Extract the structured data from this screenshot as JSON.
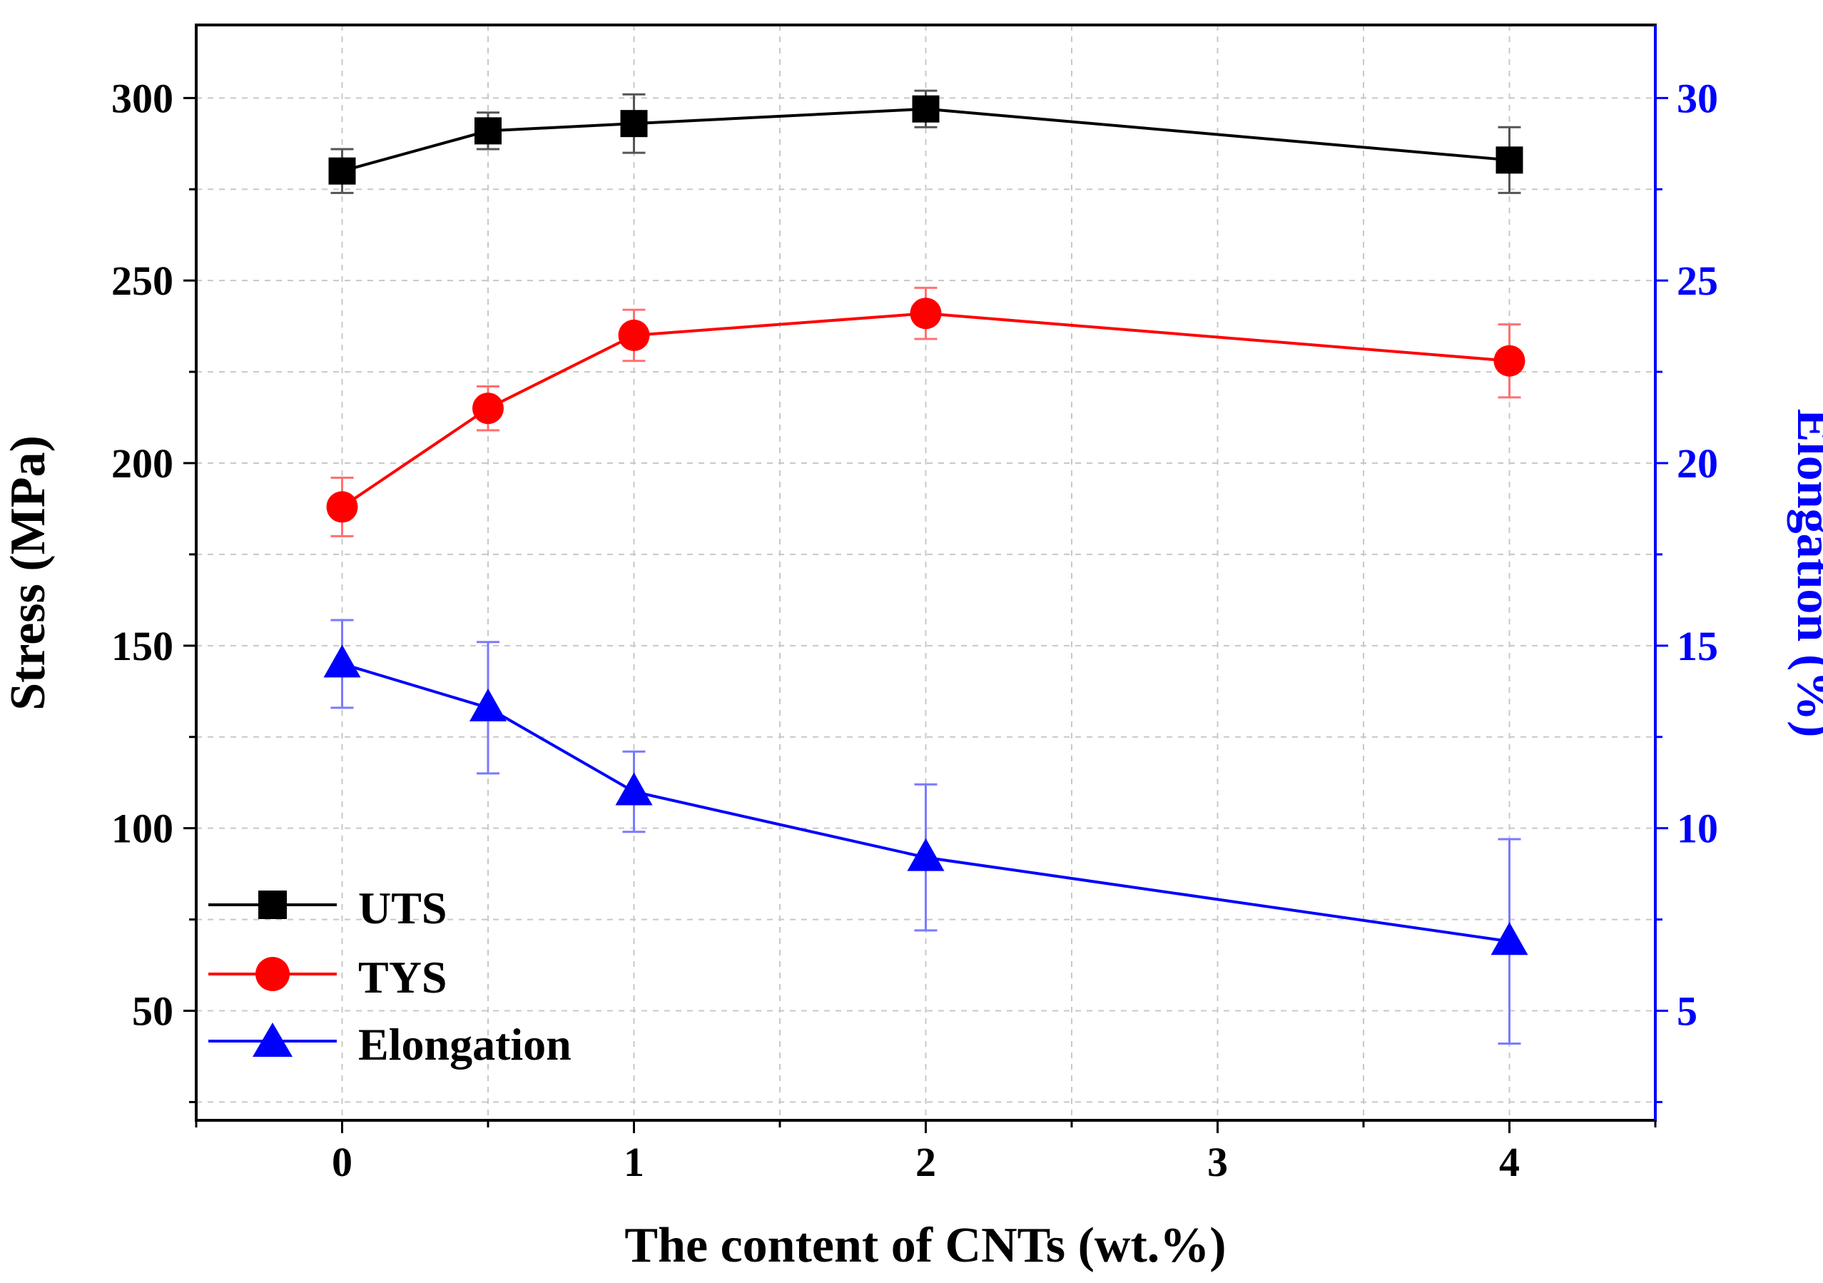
{
  "chart_data": {
    "type": "line",
    "title": "",
    "xlabel": "The content of CNTs (wt.%)",
    "ylabel": "Stress (MPa)",
    "y2label": "Elongation (%)",
    "xlim": [
      -0.5,
      4.5
    ],
    "ylim": [
      20,
      320
    ],
    "y2lim": [
      2,
      32
    ],
    "x_ticks": [
      0,
      1,
      2,
      3,
      4
    ],
    "y_ticks": [
      50,
      100,
      150,
      200,
      250,
      300
    ],
    "y2_ticks": [
      5,
      10,
      15,
      20,
      25,
      30
    ],
    "grid": true,
    "legend_position": "bottom-left",
    "colors": {
      "uts": "#000000",
      "tys": "#ff0000",
      "elongation": "#0000ff",
      "right_axis": "#0000ff"
    },
    "series": [
      {
        "name": "UTS",
        "axis": "left",
        "marker": "square",
        "color": "#000000",
        "x": [
          0,
          0.5,
          1,
          2,
          4
        ],
        "values": [
          280,
          291,
          293,
          297,
          283
        ],
        "errors": [
          6,
          5,
          8,
          5,
          9
        ]
      },
      {
        "name": "TYS",
        "axis": "left",
        "marker": "circle",
        "color": "#ff0000",
        "x": [
          0,
          0.5,
          1,
          2,
          4
        ],
        "values": [
          188,
          215,
          235,
          241,
          228
        ],
        "errors": [
          8,
          6,
          7,
          7,
          10
        ]
      },
      {
        "name": "Elongation",
        "axis": "right",
        "marker": "triangle",
        "color": "#0000ff",
        "x": [
          0,
          0.5,
          1,
          2,
          4
        ],
        "values": [
          14.5,
          13.3,
          11.0,
          9.2,
          6.9
        ],
        "errors": [
          1.2,
          1.8,
          1.1,
          2.0,
          2.8
        ]
      }
    ]
  }
}
